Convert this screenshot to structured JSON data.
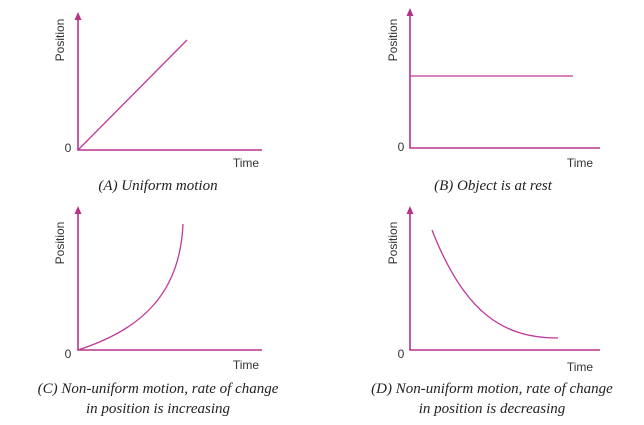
{
  "panels": [
    {
      "y_label": "Position",
      "x_label": "Time",
      "origin": "0",
      "caption": [
        "(A) Uniform motion"
      ]
    },
    {
      "y_label": "Position",
      "x_label": "Time",
      "origin": "0",
      "caption": [
        "(B) Object is at rest"
      ]
    },
    {
      "y_label": "Position",
      "x_label": "Time",
      "origin": "0",
      "caption": [
        "(C) Non-uniform motion, rate of change",
        "in position is increasing"
      ]
    },
    {
      "y_label": "Position",
      "x_label": "Time",
      "origin": "0",
      "caption": [
        "(D) Non-uniform motion, rate of change",
        "in position is decreasing"
      ]
    }
  ]
}
